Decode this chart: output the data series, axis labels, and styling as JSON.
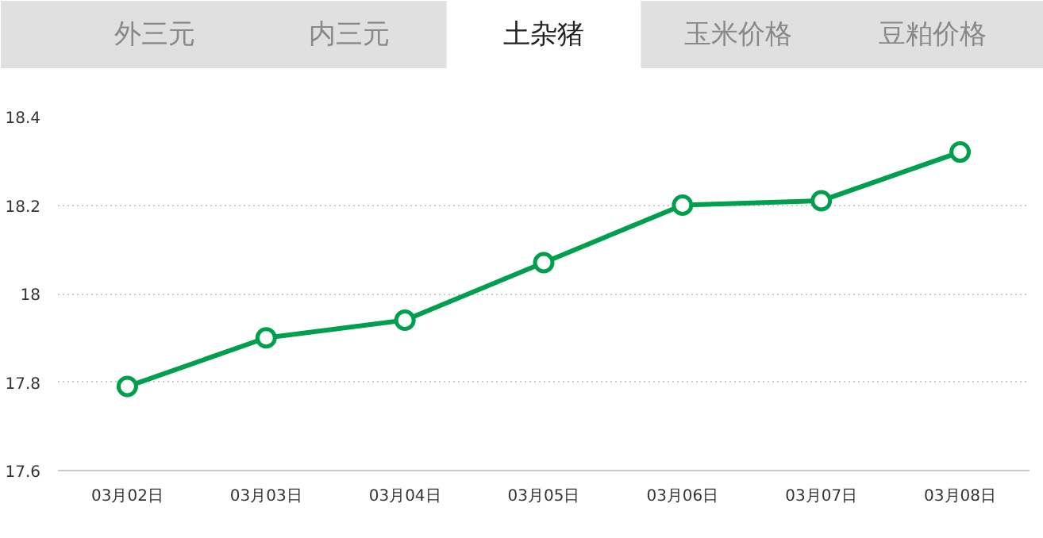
{
  "chart_data": {
    "type": "line",
    "annotations": [
      "外三元",
      "内三元",
      "土杂猪",
      "玉米价格",
      "豆粕价格"
    ],
    "categories": [
      "03月02日",
      "03月03日",
      "03月04日",
      "03月05日",
      "03月06日",
      "03月07日",
      "03月08日"
    ],
    "series": [
      {
        "color": "#009f4d",
        "values": [
          17.79,
          17.9,
          17.94,
          18.07,
          18.2,
          18.21,
          18.32
        ]
      }
    ],
    "ylim": [
      17.6,
      18.4
    ],
    "yticks": [
      17.6,
      17.8,
      {
        "value": 18,
        "label": "18"
      },
      18.2,
      18.4
    ],
    "grid": "y",
    "marker": "circle",
    "line_style": "solid"
  }
}
